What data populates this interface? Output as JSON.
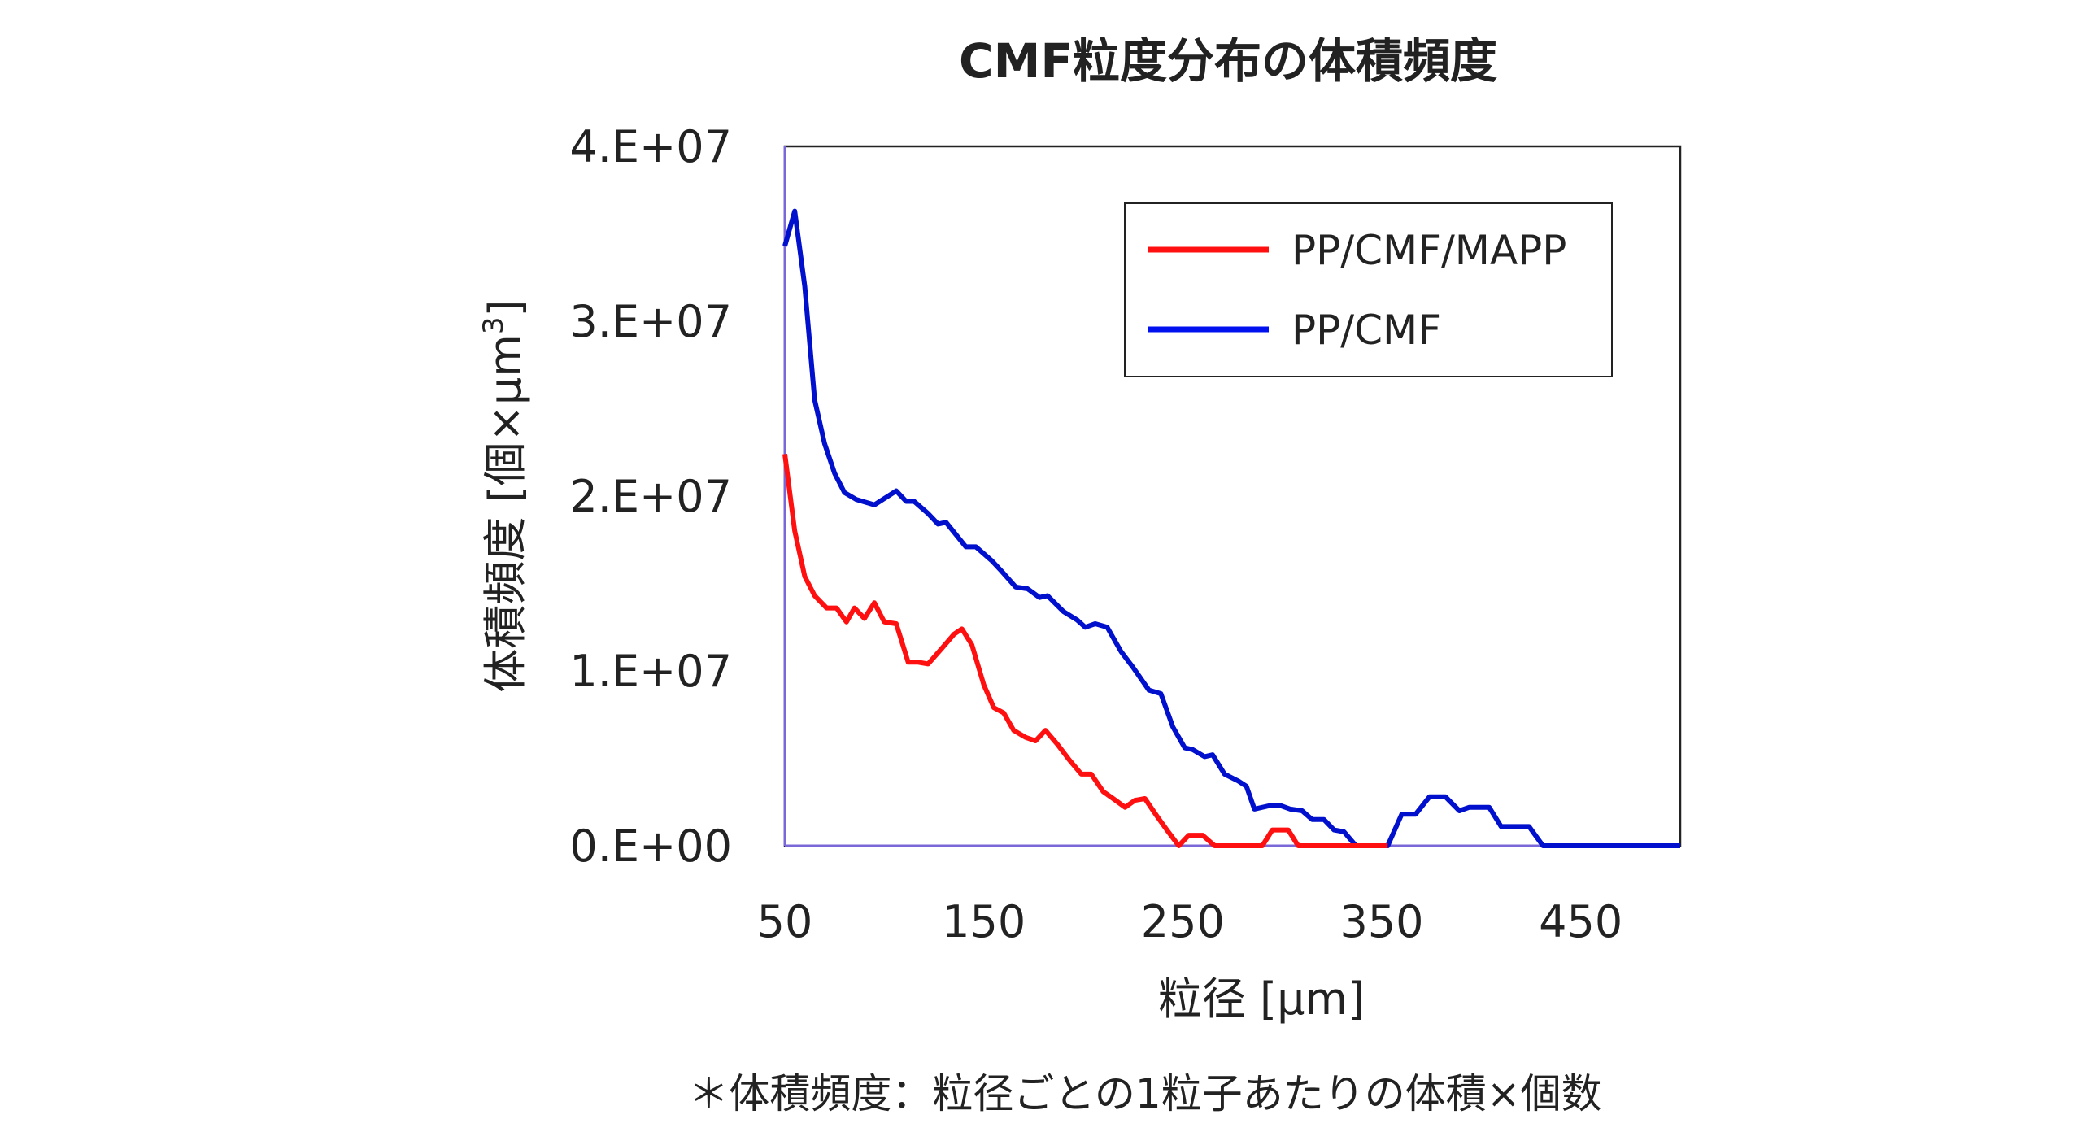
{
  "chart_data": {
    "type": "line",
    "title": "CMF粒度分布の体積頻度",
    "xlabel": "粒径 [μm]",
    "ylabel": "体積頻度 [個×μm",
    "ylabel_sup": "3",
    "ylabel_end": "]",
    "xlim": [
      50,
      500
    ],
    "ylim": [
      0,
      40000000
    ],
    "x_ticks": [
      50,
      150,
      250,
      350,
      450
    ],
    "x_tick_labels": [
      "50",
      "150",
      "250",
      "350",
      "450"
    ],
    "y_ticks": [
      0,
      10000000,
      20000000,
      30000000,
      40000000
    ],
    "y_tick_labels": [
      "0.E+00",
      "1.E+07",
      "2.E+07",
      "3.E+07",
      "4.E+07"
    ],
    "grid": false,
    "legend_position": "top-right",
    "footnote": "＊体積頻度：粒径ごとの1粒子あたりの体積×個数",
    "series": [
      {
        "name": "PP/CMF/MAPP",
        "color": "#ff1010",
        "x": [
          50,
          55,
          60,
          65,
          71,
          76,
          81,
          85,
          90,
          95,
          100,
          106,
          112,
          117,
          122,
          129,
          135,
          139,
          144,
          150,
          155,
          160,
          165,
          171,
          176,
          181,
          187,
          193,
          199,
          204,
          210,
          215,
          221,
          226,
          231,
          237,
          242,
          248,
          253,
          260,
          266,
          290,
          295,
          303,
          308,
          353
        ],
        "y": [
          22400000,
          18000000,
          15400000,
          14300000,
          13600000,
          13600000,
          12800000,
          13600000,
          13000000,
          13900000,
          12800000,
          12700000,
          10500000,
          10500000,
          10400000,
          11300000,
          12100000,
          12400000,
          11500000,
          9200000,
          7900000,
          7600000,
          6600000,
          6200000,
          6000000,
          6600000,
          5800000,
          4900000,
          4100000,
          4100000,
          3100000,
          2700000,
          2200000,
          2600000,
          2700000,
          1700000,
          900000,
          0,
          600000,
          600000,
          0,
          0,
          900000,
          900000,
          0,
          0
        ]
      },
      {
        "name": "PP/CMF",
        "color": "#0010cc",
        "x": [
          50,
          55,
          60,
          65,
          70,
          75,
          80,
          86,
          95,
          106,
          111,
          115,
          122,
          127,
          131,
          141,
          146,
          154,
          159,
          166,
          172,
          178,
          182,
          190,
          197,
          201,
          206,
          212,
          219,
          225,
          233,
          239,
          245,
          251,
          255,
          261,
          265,
          271,
          278,
          282,
          286,
          294,
          299,
          304,
          310,
          315,
          321,
          326,
          331,
          337,
          353,
          360,
          367,
          374,
          382,
          389,
          394,
          404,
          410,
          424,
          431,
          500
        ],
        "y": [
          34300000,
          36300000,
          32000000,
          25500000,
          23000000,
          21300000,
          20200000,
          19800000,
          19500000,
          20300000,
          19700000,
          19700000,
          19000000,
          18400000,
          18500000,
          17100000,
          17100000,
          16300000,
          15700000,
          14800000,
          14700000,
          14200000,
          14300000,
          13400000,
          12900000,
          12500000,
          12700000,
          12500000,
          11100000,
          10200000,
          8900000,
          8700000,
          6800000,
          5600000,
          5500000,
          5100000,
          5200000,
          4100000,
          3700000,
          3400000,
          2100000,
          2300000,
          2300000,
          2100000,
          2000000,
          1500000,
          1500000,
          900000,
          800000,
          0,
          0,
          1800000,
          1800000,
          2800000,
          2800000,
          2000000,
          2200000,
          2200000,
          1100000,
          1100000,
          0,
          0
        ]
      }
    ]
  }
}
